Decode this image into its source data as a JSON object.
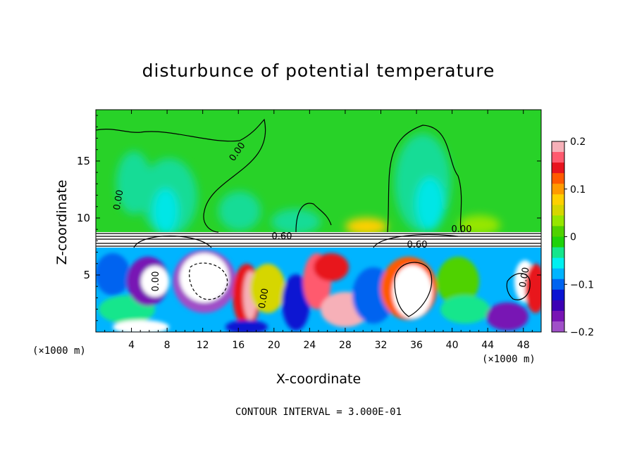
{
  "chart_data": {
    "type": "heatmap",
    "title": "disturbunce of potential temperature",
    "xlabel": "X-coordinate",
    "ylabel": "Z-coordinate",
    "x_unit": "(×1000 m)",
    "z_unit": "(×1000 m)",
    "xlim": [
      0,
      50
    ],
    "ylim": [
      0,
      19.5
    ],
    "x_ticks": [
      4,
      8,
      12,
      16,
      20,
      24,
      28,
      32,
      36,
      40,
      44,
      48
    ],
    "y_ticks": [
      5,
      10,
      15
    ],
    "colorbar": {
      "range": [
        -0.2,
        0.2
      ],
      "ticks": [
        "0.2",
        "0.1",
        "0",
        "−0.1",
        "−0.2"
      ],
      "colors": [
        "#f6b0b8",
        "#ff5a6e",
        "#e8141e",
        "#ff5a00",
        "#ff9a00",
        "#ffd000",
        "#d6d600",
        "#96e600",
        "#50d200",
        "#1ed20a",
        "#14e68c",
        "#00f0f0",
        "#00b4ff",
        "#0064f0",
        "#0a14d2",
        "#3c00b4",
        "#7814b4",
        "#a050c8"
      ]
    },
    "contour_interval": "CONTOUR INTERVAL = 3.000E-01",
    "contour_labels": [
      "0.00",
      "0.00",
      "0.60",
      "0.00",
      "0.00",
      "0.00",
      "0.00",
      "0.60"
    ]
  }
}
